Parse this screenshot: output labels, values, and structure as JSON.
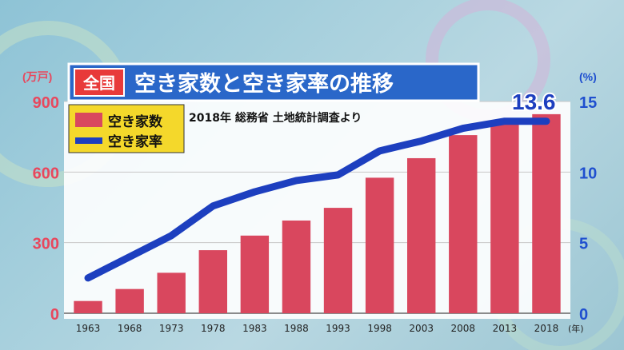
{
  "colors": {
    "bar": "#d9475e",
    "line": "#1d3fbf",
    "left_axis_text": "#e8475d",
    "right_axis_text": "#1f4fcf",
    "title_bg": "#2a67c9",
    "tag_bg": "#e83a3a",
    "legend_bg": "#f4d82b"
  },
  "title": {
    "tag": "全国",
    "text": "空き家数と空き家率の推移"
  },
  "source": "2018年 総務省 土地統計調査より",
  "legend": {
    "bar_label": "空き家数",
    "line_label": "空き家率"
  },
  "highlight_label": "13.6",
  "chart_data": {
    "type": "bar",
    "categories": [
      "1963",
      "1968",
      "1973",
      "1978",
      "1983",
      "1988",
      "1993",
      "1998",
      "2003",
      "2008",
      "2013",
      "2018"
    ],
    "x_unit": "(年)",
    "series": [
      {
        "name": "空き家数",
        "type": "bar",
        "axis": "left",
        "values": [
          52,
          103,
          172,
          268,
          330,
          394,
          448,
          576,
          659,
          757,
          820,
          846
        ]
      },
      {
        "name": "空き家率",
        "type": "line",
        "axis": "right",
        "values": [
          2.5,
          4.0,
          5.5,
          7.6,
          8.6,
          9.4,
          9.8,
          11.5,
          12.2,
          13.1,
          13.6,
          13.6
        ]
      }
    ],
    "left_axis": {
      "unit": "(万戸)",
      "ticks": [
        0,
        300,
        600,
        900
      ],
      "ylim": [
        0,
        900
      ]
    },
    "right_axis": {
      "unit": "(%)",
      "ticks": [
        0,
        5,
        10,
        15
      ],
      "ylim": [
        0,
        15
      ]
    }
  }
}
